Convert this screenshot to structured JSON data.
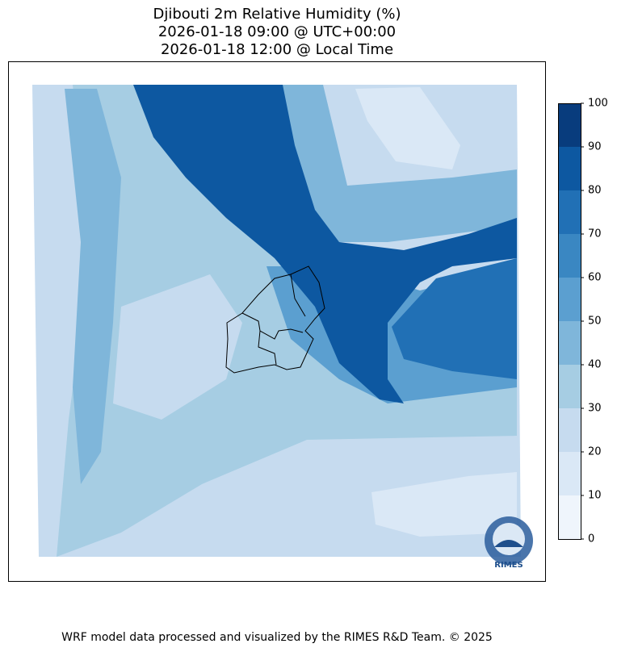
{
  "title_lines": [
    "Djibouti 2m Relative Humidity (%)",
    "2026-01-18 09:00 @ UTC+00:00",
    "2026-01-18 12:00 @ Local Time"
  ],
  "map": {
    "colorbar": {
      "lim": [
        0,
        100
      ],
      "ticks": [
        0,
        10,
        20,
        30,
        40,
        50,
        60,
        70,
        80,
        90,
        100
      ],
      "colors": [
        "#eff5fc",
        "#dae8f6",
        "#c6dbef",
        "#a6cde3",
        "#7fb6da",
        "#5b9fd0",
        "#3a87c2",
        "#2170b5",
        "#0d58a1",
        "#083c7d"
      ]
    }
  },
  "logo": {
    "text": "RIMES"
  },
  "footer": "WRF model data processed and visualized by the RIMES R&D Team. © 2025"
}
